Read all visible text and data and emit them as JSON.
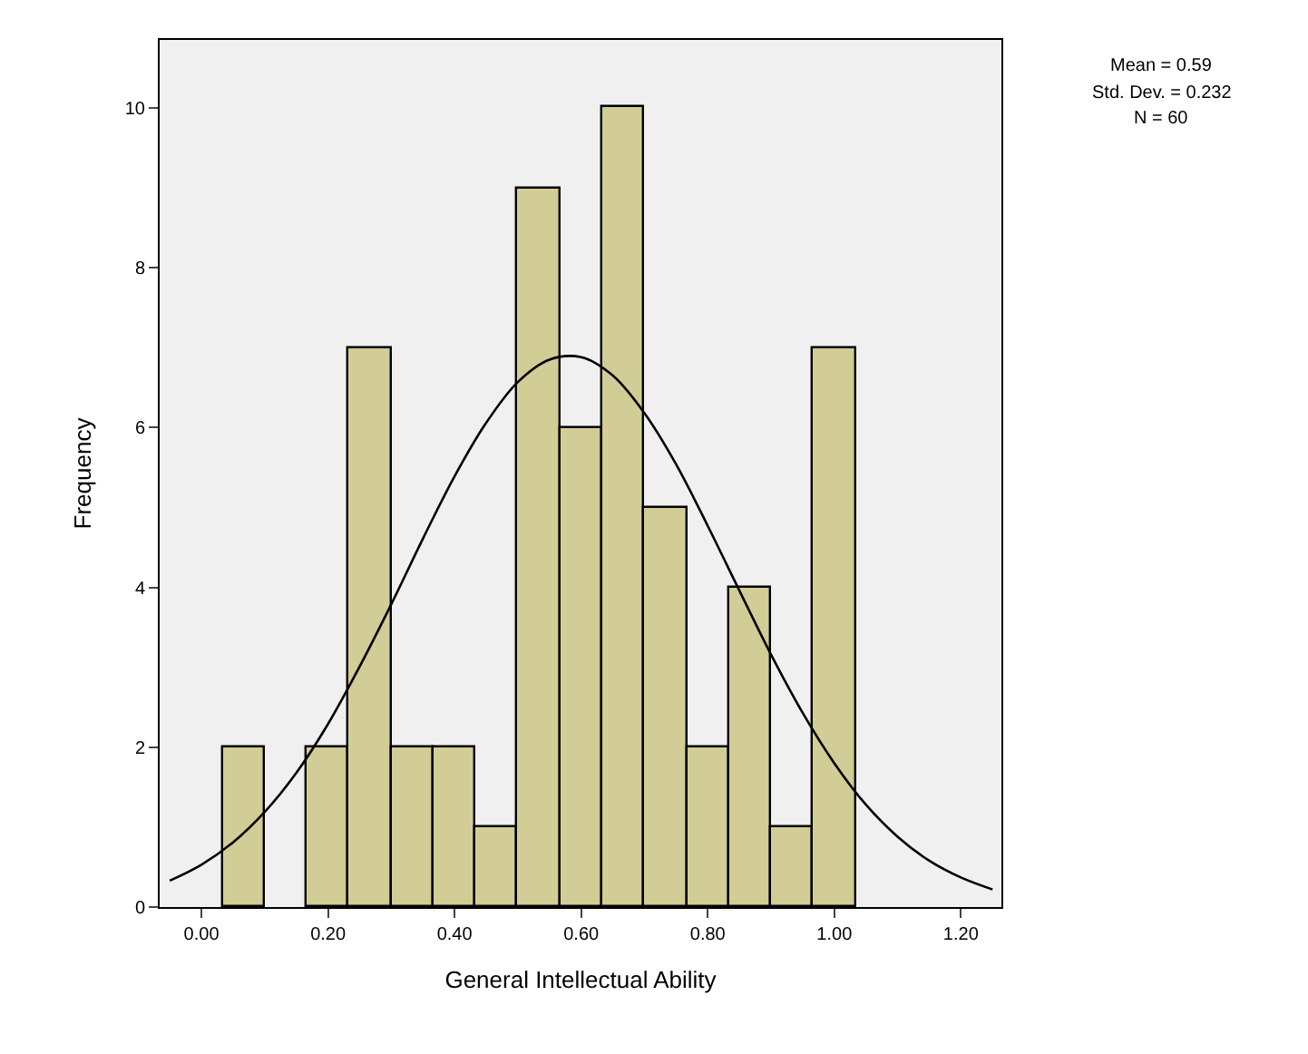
{
  "chart_data": {
    "type": "histogram",
    "xlabel": "General Intellectual Ability",
    "ylabel": "Frequency",
    "bins": [
      0.0333,
      0.1,
      0.1667,
      0.2333,
      0.3,
      0.3667,
      0.4333,
      0.5,
      0.5667,
      0.6333,
      0.7,
      0.7667,
      0.8333,
      0.9,
      0.9667,
      1.0333
    ],
    "values": [
      2,
      0,
      2,
      7,
      2,
      2,
      1,
      9,
      6,
      10,
      5,
      2,
      4,
      1,
      7
    ],
    "color": "#d2cc96",
    "series": [
      {
        "type": "line",
        "color": "#000000",
        "x": [
          -0.05,
          0.0,
          0.05,
          0.1,
          0.15,
          0.2,
          0.25,
          0.3,
          0.35,
          0.4,
          0.45,
          0.5,
          0.55,
          0.6,
          0.65,
          0.7,
          0.75,
          0.8,
          0.85,
          0.9,
          0.95,
          1.0,
          1.05,
          1.1,
          1.15,
          1.2,
          1.25
        ],
        "values": [
          0.33,
          0.53,
          0.81,
          1.19,
          1.68,
          2.29,
          3.01,
          3.79,
          4.61,
          5.39,
          6.06,
          6.57,
          6.85,
          6.88,
          6.65,
          6.18,
          5.54,
          4.77,
          3.96,
          3.16,
          2.43,
          1.8,
          1.28,
          0.88,
          0.58,
          0.37,
          0.22
        ]
      }
    ],
    "xlim": [
      -0.066,
      1.264
    ],
    "xticks": [
      {
        "value": 0,
        "label": "0.00"
      },
      {
        "value": 0.2,
        "label": "0.20"
      },
      {
        "value": 0.4,
        "label": "0.40"
      },
      {
        "value": 0.6,
        "label": "0.60"
      },
      {
        "value": 0.8,
        "label": "0.80"
      },
      {
        "value": 1.0,
        "label": "1.00"
      },
      {
        "value": 1.2,
        "label": "1.20"
      }
    ],
    "ylim": [
      0,
      10.85
    ],
    "yticks": [
      0,
      2,
      4,
      6,
      8,
      10
    ],
    "grid": false,
    "annotations": [
      "Mean = 0.59",
      "Std. Dev. = 0.232",
      "N = 60"
    ]
  }
}
